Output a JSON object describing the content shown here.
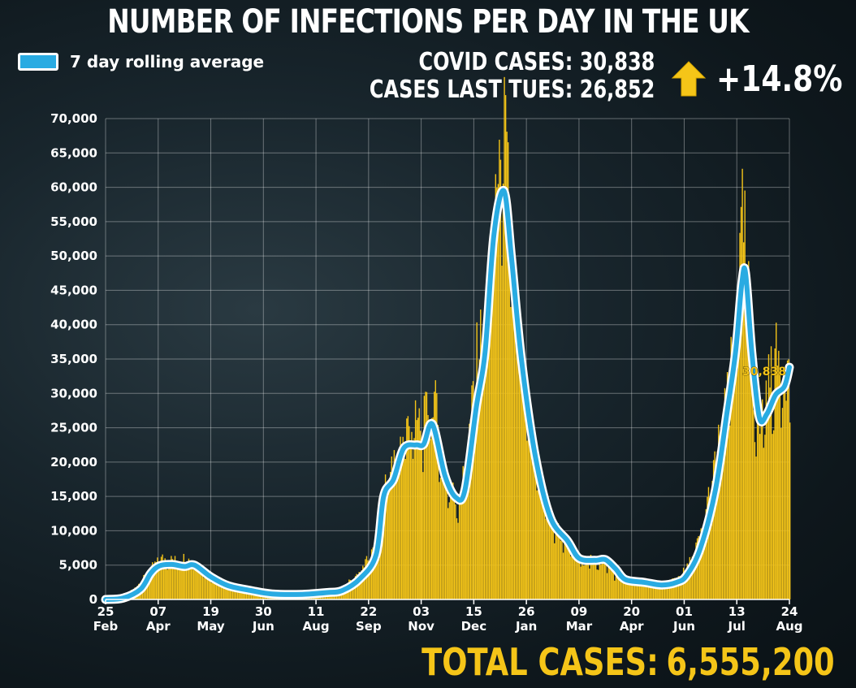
{
  "header": {
    "title": "NUMBER OF INFECTIONS PER DAY IN THE UK",
    "legend_label": "7 day rolling average",
    "covid_cases_label": "COVID CASES:",
    "covid_cases_value": "30,838",
    "last_tues_label": "CASES LAST TUES:",
    "last_tues_value": "26,852",
    "change": "+14.8%",
    "arrow_icon": "up-arrow-icon",
    "total_label": "TOTAL CASES:",
    "total_value": "6,555,200",
    "callout": "30,838"
  },
  "colors": {
    "bars": "#f5c518",
    "rolling_line": "#29abe2",
    "arrow": "#f5c518",
    "callout": "#f5c518"
  },
  "chart_data": {
    "type": "bar",
    "title": "NUMBER OF INFECTIONS PER DAY IN THE UK",
    "ylim": [
      0,
      70000
    ],
    "yticks": [
      0,
      5000,
      10000,
      15000,
      20000,
      25000,
      30000,
      35000,
      40000,
      45000,
      50000,
      55000,
      60000,
      65000,
      70000
    ],
    "ytick_labels": [
      "0",
      "5,000",
      "10,000",
      "15,000",
      "20,000",
      "25,000",
      "30,000",
      "35,000",
      "40,000",
      "45,000",
      "50,000",
      "55,000",
      "60,000",
      "65,000",
      "70,000"
    ],
    "xticks": [
      {
        "day": "25",
        "month": "Feb",
        "date": "2020-02-25"
      },
      {
        "day": "07",
        "month": "Apr",
        "date": "2020-04-07"
      },
      {
        "day": "19",
        "month": "May",
        "date": "2020-05-19"
      },
      {
        "day": "30",
        "month": "Jun",
        "date": "2020-06-30"
      },
      {
        "day": "11",
        "month": "Aug",
        "date": "2020-08-11"
      },
      {
        "day": "22",
        "month": "Sep",
        "date": "2020-09-22"
      },
      {
        "day": "03",
        "month": "Nov",
        "date": "2020-11-03"
      },
      {
        "day": "15",
        "month": "Dec",
        "date": "2020-12-15"
      },
      {
        "day": "26",
        "month": "Jan",
        "date": "2021-01-26"
      },
      {
        "day": "09",
        "month": "Mar",
        "date": "2021-03-09"
      },
      {
        "day": "20",
        "month": "Apr",
        "date": "2021-04-20"
      },
      {
        "day": "01",
        "month": "Jun",
        "date": "2021-06-01"
      },
      {
        "day": "13",
        "month": "Jul",
        "date": "2021-07-13"
      },
      {
        "day": "24",
        "month": "Aug",
        "date": "2021-08-24"
      }
    ],
    "grid": true,
    "legend": "top-left",
    "series": [
      {
        "name": "7 day rolling average",
        "type": "line",
        "points": [
          [
            "2020-02-25",
            0
          ],
          [
            "2020-03-10",
            200
          ],
          [
            "2020-03-24",
            1500
          ],
          [
            "2020-04-01",
            3800
          ],
          [
            "2020-04-08",
            4900
          ],
          [
            "2020-04-18",
            5100
          ],
          [
            "2020-04-28",
            4800
          ],
          [
            "2020-05-06",
            5000
          ],
          [
            "2020-05-19",
            3300
          ],
          [
            "2020-06-02",
            2000
          ],
          [
            "2020-06-20",
            1300
          ],
          [
            "2020-07-07",
            800
          ],
          [
            "2020-07-31",
            750
          ],
          [
            "2020-08-20",
            1000
          ],
          [
            "2020-09-01",
            1300
          ],
          [
            "2020-09-15",
            3000
          ],
          [
            "2020-09-28",
            6500
          ],
          [
            "2020-10-04",
            15000
          ],
          [
            "2020-10-12",
            17500
          ],
          [
            "2020-10-20",
            22000
          ],
          [
            "2020-10-30",
            22500
          ],
          [
            "2020-11-05",
            22600
          ],
          [
            "2020-11-12",
            25500
          ],
          [
            "2020-11-22",
            18000
          ],
          [
            "2020-12-01",
            14800
          ],
          [
            "2020-12-08",
            16000
          ],
          [
            "2020-12-17",
            28000
          ],
          [
            "2020-12-24",
            36000
          ],
          [
            "2020-12-31",
            53000
          ],
          [
            "2021-01-08",
            59500
          ],
          [
            "2021-01-14",
            50000
          ],
          [
            "2021-01-22",
            35000
          ],
          [
            "2021-02-02",
            21000
          ],
          [
            "2021-02-14",
            12000
          ],
          [
            "2021-02-28",
            8500
          ],
          [
            "2021-03-09",
            6000
          ],
          [
            "2021-03-22",
            5700
          ],
          [
            "2021-03-30",
            5800
          ],
          [
            "2021-04-07",
            4500
          ],
          [
            "2021-04-15",
            2900
          ],
          [
            "2021-04-30",
            2500
          ],
          [
            "2021-05-14",
            2100
          ],
          [
            "2021-05-26",
            2500
          ],
          [
            "2021-06-03",
            3500
          ],
          [
            "2021-06-14",
            7500
          ],
          [
            "2021-06-26",
            16000
          ],
          [
            "2021-07-05",
            27000
          ],
          [
            "2021-07-12",
            36000
          ],
          [
            "2021-07-17",
            46000
          ],
          [
            "2021-07-20",
            47500
          ],
          [
            "2021-07-25",
            36000
          ],
          [
            "2021-07-31",
            26500
          ],
          [
            "2021-08-06",
            27000
          ],
          [
            "2021-08-13",
            29800
          ],
          [
            "2021-08-20",
            31000
          ],
          [
            "2021-08-24",
            33800
          ]
        ]
      },
      {
        "name": "",
        "type": "bar",
        "envelope_points": [
          [
            "2020-02-25",
            0
          ],
          [
            "2020-03-10",
            300
          ],
          [
            "2020-03-24",
            2500
          ],
          [
            "2020-04-01",
            4500
          ],
          [
            "2020-04-10",
            5800
          ],
          [
            "2020-04-20",
            5500
          ],
          [
            "2020-04-28",
            5900
          ],
          [
            "2020-05-06",
            5000
          ],
          [
            "2020-05-19",
            3200
          ],
          [
            "2020-06-02",
            1900
          ],
          [
            "2020-06-20",
            1200
          ],
          [
            "2020-07-07",
            800
          ],
          [
            "2020-07-31",
            800
          ],
          [
            "2020-08-20",
            1100
          ],
          [
            "2020-09-01",
            1600
          ],
          [
            "2020-09-15",
            4000
          ],
          [
            "2020-09-28",
            7500
          ],
          [
            "2020-10-04",
            16000
          ],
          [
            "2020-10-12",
            19000
          ],
          [
            "2020-10-20",
            24000
          ],
          [
            "2020-10-30",
            24800
          ],
          [
            "2020-11-05",
            25000
          ],
          [
            "2020-11-12",
            29500
          ],
          [
            "2020-11-22",
            17000
          ],
          [
            "2020-12-01",
            14000
          ],
          [
            "2020-12-08",
            18000
          ],
          [
            "2020-12-17",
            34000
          ],
          [
            "2020-12-24",
            40000
          ],
          [
            "2020-12-31",
            56000
          ],
          [
            "2021-01-04",
            62000
          ],
          [
            "2021-01-08",
            66000
          ],
          [
            "2021-01-14",
            48000
          ],
          [
            "2021-01-22",
            33000
          ],
          [
            "2021-02-02",
            19000
          ],
          [
            "2021-02-14",
            11000
          ],
          [
            "2021-02-28",
            8000
          ],
          [
            "2021-03-09",
            5500
          ],
          [
            "2021-03-22",
            5500
          ],
          [
            "2021-03-30",
            5200
          ],
          [
            "2021-04-07",
            3500
          ],
          [
            "2021-04-15",
            2700
          ],
          [
            "2021-04-30",
            2400
          ],
          [
            "2021-05-14",
            2200
          ],
          [
            "2021-05-26",
            3000
          ],
          [
            "2021-06-03",
            4500
          ],
          [
            "2021-06-14",
            9000
          ],
          [
            "2021-06-26",
            20000
          ],
          [
            "2021-07-05",
            28000
          ],
          [
            "2021-07-12",
            38000
          ],
          [
            "2021-07-17",
            53000
          ],
          [
            "2021-07-20",
            50000
          ],
          [
            "2021-07-25",
            31000
          ],
          [
            "2021-07-31",
            24000
          ],
          [
            "2021-08-06",
            30000
          ],
          [
            "2021-08-13",
            34000
          ],
          [
            "2021-08-20",
            33000
          ],
          [
            "2021-08-24",
            31000
          ]
        ]
      }
    ]
  }
}
